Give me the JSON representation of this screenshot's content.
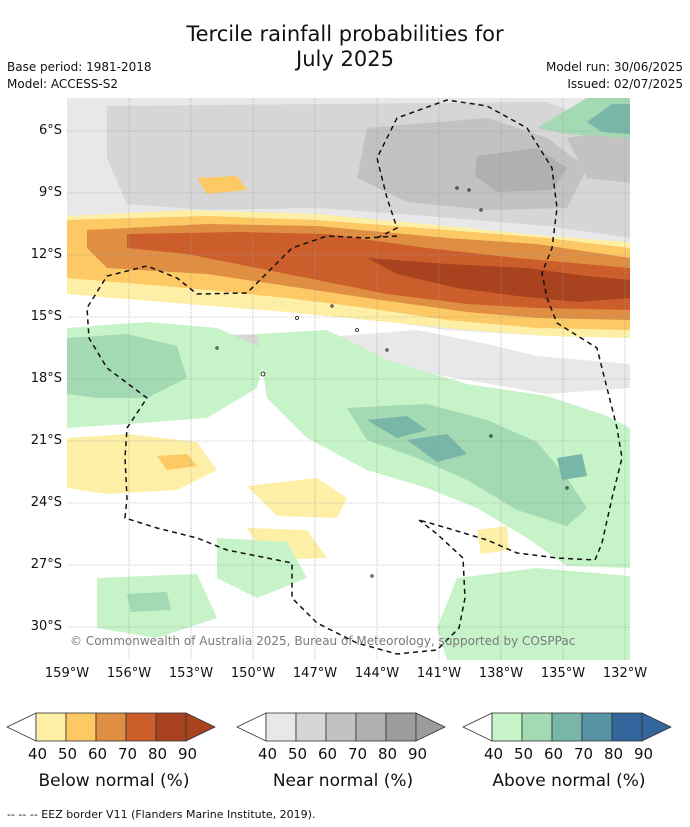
{
  "title_line1": "Tercile rainfall probabilities for",
  "title_line2": "July 2025",
  "base_period": "Base period: 1981-2018",
  "model": "Model: ACCESS-S2",
  "model_run": "Model run: 30/06/2025",
  "issued": "Issued: 02/07/2025",
  "latitude_labels": [
    "6°S",
    "9°S",
    "12°S",
    "15°S",
    "18°S",
    "21°S",
    "24°S",
    "27°S",
    "30°S"
  ],
  "longitude_labels": [
    "159°W",
    "156°W",
    "153°W",
    "150°W",
    "147°W",
    "144°W",
    "141°W",
    "138°W",
    "135°W",
    "132°W"
  ],
  "copyright": "© Commonwealth of Australia 2025, Bureau of Meteorology, supported by COSPPac",
  "legends": [
    {
      "title": "Below normal (%)",
      "ticks": [
        "40",
        "50",
        "60",
        "70",
        "80",
        "90"
      ],
      "colors": [
        "#fdf0a6",
        "#fdc964",
        "#e08f42",
        "#cc5e2c",
        "#a8421f"
      ]
    },
    {
      "title": "Near normal (%)",
      "ticks": [
        "40",
        "50",
        "60",
        "70",
        "80",
        "90"
      ],
      "colors": [
        "#e8e8e8",
        "#d6d6d6",
        "#c2c2c2",
        "#b0b0b0",
        "#9c9c9c"
      ]
    },
    {
      "title": "Above normal (%)",
      "ticks": [
        "40",
        "50",
        "60",
        "70",
        "80",
        "90"
      ],
      "colors": [
        "#c6f4c8",
        "#a3d9b3",
        "#78b6a8",
        "#5694a3",
        "#33669c"
      ]
    }
  ],
  "footnote": "-- -- -- EEZ border V11 (Flanders Marine Institute, 2019)."
}
